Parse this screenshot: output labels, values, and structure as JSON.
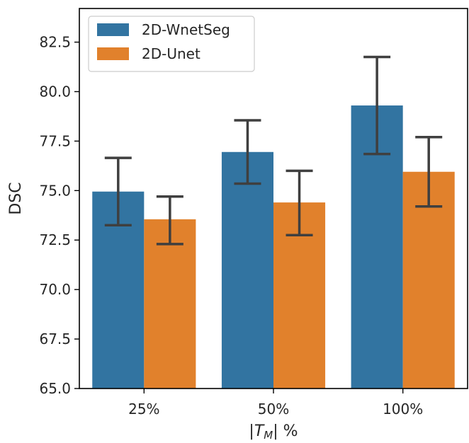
{
  "chart_data": {
    "type": "bar",
    "categories": [
      "25%",
      "50%",
      "100%"
    ],
    "series": [
      {
        "name": "2D-WnetSeg",
        "color": "#3274a1",
        "values": [
          74.95,
          76.95,
          79.3
        ],
        "err_low": [
          73.25,
          75.35,
          76.85
        ],
        "err_high": [
          76.65,
          78.55,
          81.75
        ]
      },
      {
        "name": "2D-Unet",
        "color": "#e1812c",
        "values": [
          73.55,
          74.4,
          75.95
        ],
        "err_low": [
          72.3,
          72.75,
          74.2
        ],
        "err_high": [
          74.7,
          76.0,
          77.7
        ]
      }
    ],
    "xlabel": "|T_M| %",
    "ylabel": "DSC",
    "ylim": [
      65.0,
      84.2
    ],
    "yticks": [
      65.0,
      67.5,
      70.0,
      72.5,
      75.0,
      77.5,
      80.0,
      82.5
    ],
    "grid": false,
    "legend_position": "top-left",
    "errorbar_color": "#3f3f3f"
  }
}
